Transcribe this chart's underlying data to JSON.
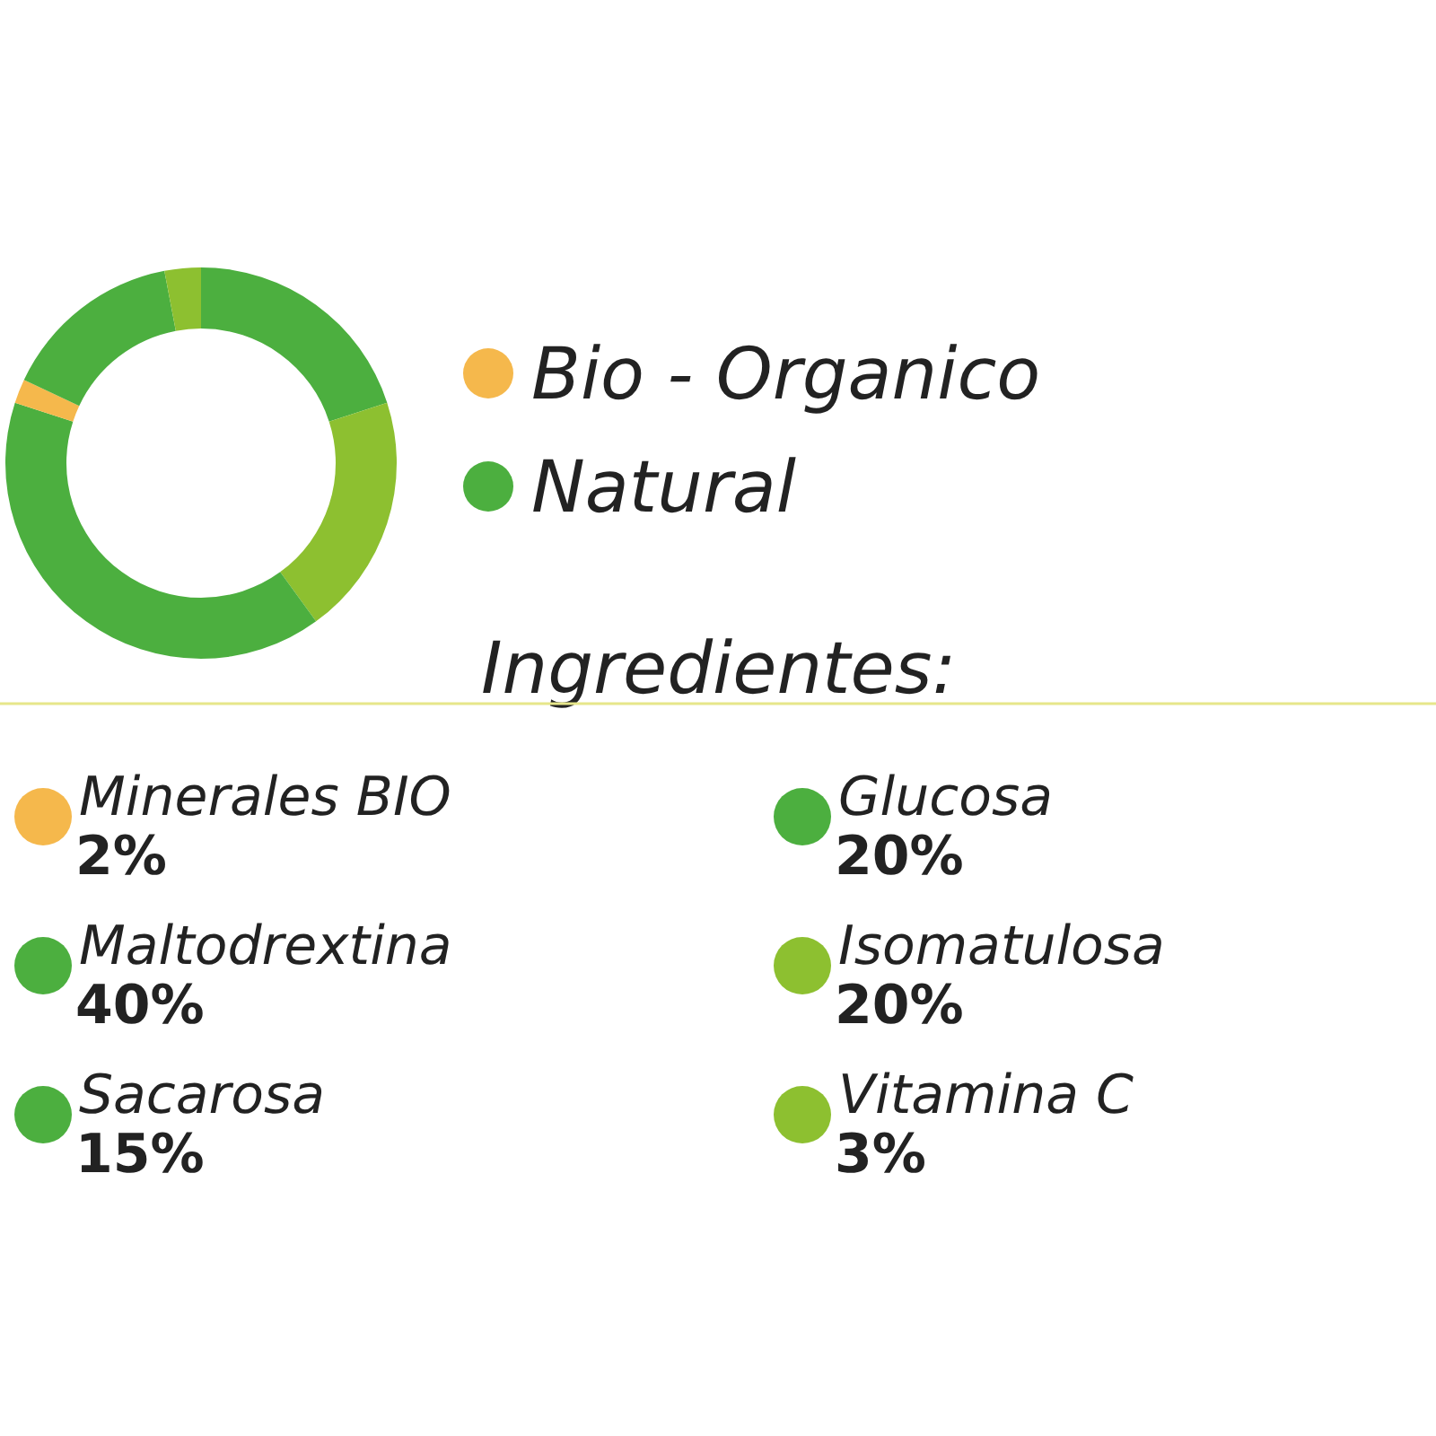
{
  "chart_data": {
    "type": "donut",
    "categories": [
      "Glucosa",
      "Isomatulosa",
      "Maltodrextina",
      "Minerales BIO",
      "Sacarosa",
      "Vitamina C"
    ],
    "values": [
      20,
      20,
      40,
      2,
      15,
      3
    ],
    "colors": [
      "#4caf3f",
      "#8dc030",
      "#4caf3f",
      "#f5b84c",
      "#4caf3f",
      "#8dc030"
    ],
    "value_labels": [
      "20%",
      "20%",
      "40%",
      "2%",
      "15%",
      "3%"
    ],
    "legend_title": "Ingredientes:",
    "annotations": [
      "Bio - Organico",
      "Natural"
    ],
    "legend": "bottom"
  }
}
